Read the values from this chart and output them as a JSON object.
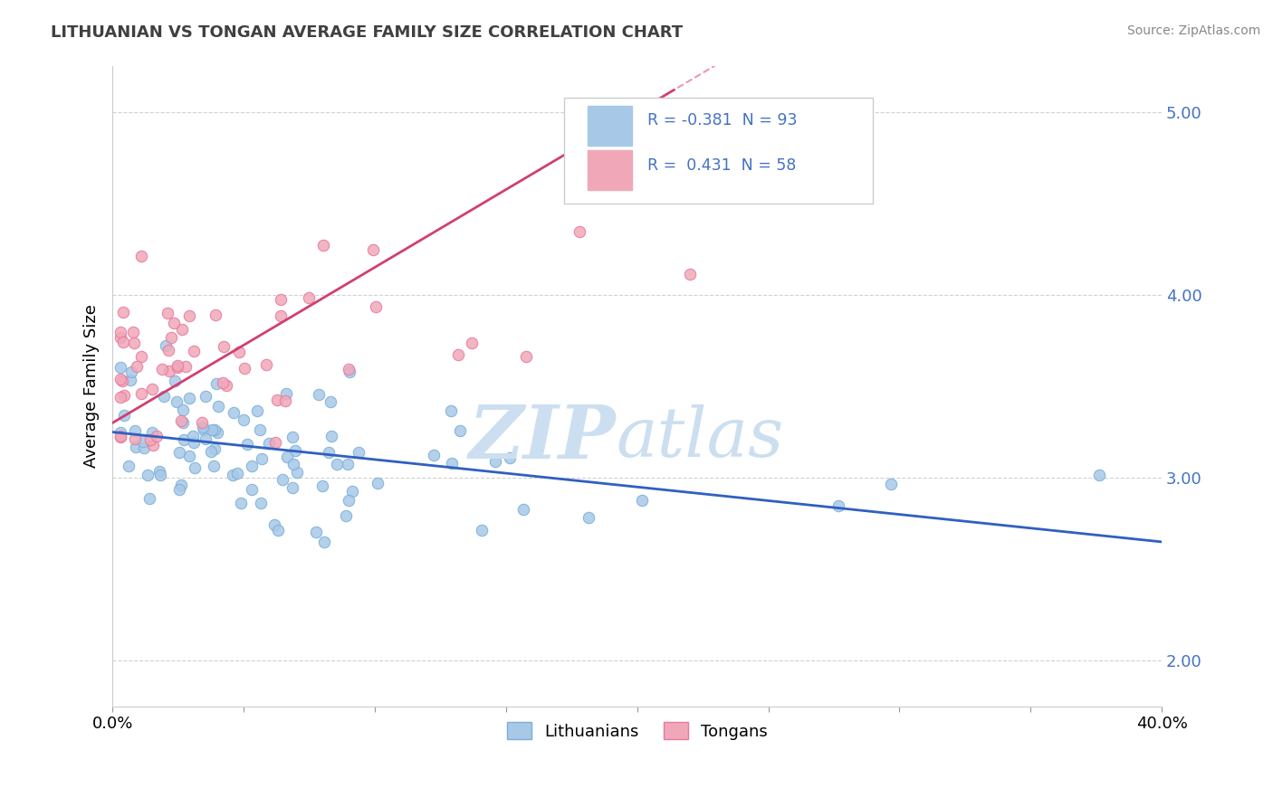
{
  "title": "LITHUANIAN VS TONGAN AVERAGE FAMILY SIZE CORRELATION CHART",
  "source": "Source: ZipAtlas.com",
  "ylabel": "Average Family Size",
  "xmin": 0.0,
  "xmax": 0.4,
  "ymin": 1.75,
  "ymax": 5.25,
  "yticks": [
    2.0,
    3.0,
    4.0,
    5.0
  ],
  "xticks": [
    0.0,
    0.05,
    0.1,
    0.15,
    0.2,
    0.25,
    0.3,
    0.35,
    0.4
  ],
  "blue_color": "#a8c8e8",
  "pink_color": "#f0a8b8",
  "blue_edge_color": "#7ab0d8",
  "pink_edge_color": "#e878a0",
  "blue_line_color": "#3060c0",
  "pink_line_color": "#d04070",
  "pink_line_dashed_color": "#e898b8",
  "watermark_color": "#ccdff0",
  "title_color": "#404040",
  "ytick_color": "#4472c4",
  "legend_border_color": "#cccccc",
  "grid_color": "#cccccc"
}
